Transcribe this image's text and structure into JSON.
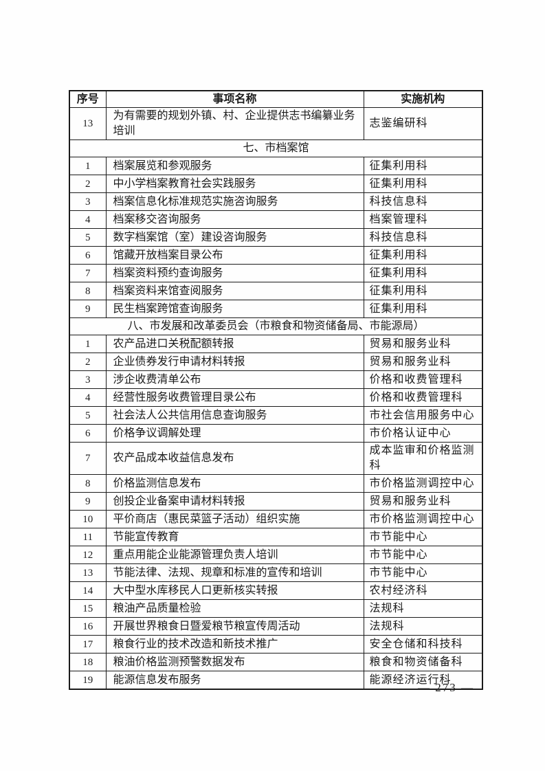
{
  "colors": {
    "background": "#fefefe",
    "border": "#1a1a1a",
    "text": "#1a1a1a"
  },
  "table": {
    "headers": [
      "序号",
      "事项名称",
      "实施机构"
    ],
    "leading_rows": [
      {
        "no": "13",
        "name": "为有需要的规划外镇、村、企业提供志书编纂业务培训",
        "org": "志鉴编研科"
      }
    ],
    "sections": [
      {
        "title": "七、市档案馆",
        "rows": [
          {
            "no": "1",
            "name": "档案展览和参观服务",
            "org": "征集利用科"
          },
          {
            "no": "2",
            "name": "中小学档案教育社会实践服务",
            "org": "征集利用科"
          },
          {
            "no": "3",
            "name": "档案信息化标准规范实施咨询服务",
            "org": "科技信息科"
          },
          {
            "no": "4",
            "name": "档案移交咨询服务",
            "org": "档案管理科"
          },
          {
            "no": "5",
            "name": "数字档案馆（室）建设咨询服务",
            "org": "科技信息科"
          },
          {
            "no": "6",
            "name": "馆藏开放档案目录公布",
            "org": "征集利用科"
          },
          {
            "no": "7",
            "name": "档案资料预约查询服务",
            "org": "征集利用科"
          },
          {
            "no": "8",
            "name": "档案资料来馆查阅服务",
            "org": "征集利用科"
          },
          {
            "no": "9",
            "name": "民生档案跨馆查询服务",
            "org": "征集利用科"
          }
        ]
      },
      {
        "title": "八、市发展和改革委员会（市粮食和物资储备局、市能源局）",
        "rows": [
          {
            "no": "1",
            "name": "农产品进口关税配额转报",
            "org": "贸易和服务业科"
          },
          {
            "no": "2",
            "name": "企业债券发行申请材料转报",
            "org": "贸易和服务业科"
          },
          {
            "no": "3",
            "name": "涉企收费清单公布",
            "org": "价格和收费管理科"
          },
          {
            "no": "4",
            "name": "经营性服务收费管理目录公布",
            "org": "价格和收费管理科"
          },
          {
            "no": "5",
            "name": "社会法人公共信用信息查询服务",
            "org": "市社会信用服务中心"
          },
          {
            "no": "6",
            "name": "价格争议调解处理",
            "org": "市价格认证中心"
          },
          {
            "no": "7",
            "name": "农产品成本收益信息发布",
            "org": "成本监审和价格监测科"
          },
          {
            "no": "8",
            "name": "价格监测信息发布",
            "org": "市价格监测调控中心"
          },
          {
            "no": "9",
            "name": "创投企业备案申请材料转报",
            "org": "贸易和服务业科"
          },
          {
            "no": "10",
            "name": "平价商店（惠民菜篮子活动）组织实施",
            "org": "市价格监测调控中心"
          },
          {
            "no": "11",
            "name": "节能宣传教育",
            "org": "市节能中心"
          },
          {
            "no": "12",
            "name": "重点用能企业能源管理负责人培训",
            "org": "市节能中心"
          },
          {
            "no": "13",
            "name": "节能法律、法规、规章和标准的宣传和培训",
            "org": "市节能中心"
          },
          {
            "no": "14",
            "name": "大中型水库移民人口更新核实转报",
            "org": "农村经济科"
          },
          {
            "no": "15",
            "name": "粮油产品质量检验",
            "org": "法规科"
          },
          {
            "no": "16",
            "name": "开展世界粮食日暨爱粮节粮宣传周活动",
            "org": "法规科"
          },
          {
            "no": "17",
            "name": "粮食行业的技术改造和新技术推广",
            "org": "安全仓储和科技科"
          },
          {
            "no": "18",
            "name": "粮油价格监测预警数据发布",
            "org": "粮食和物资储备科"
          },
          {
            "no": "19",
            "name": "能源信息发布服务",
            "org": "能源经济运行科"
          }
        ]
      }
    ]
  },
  "footer": {
    "page_number": "— 273 —"
  }
}
